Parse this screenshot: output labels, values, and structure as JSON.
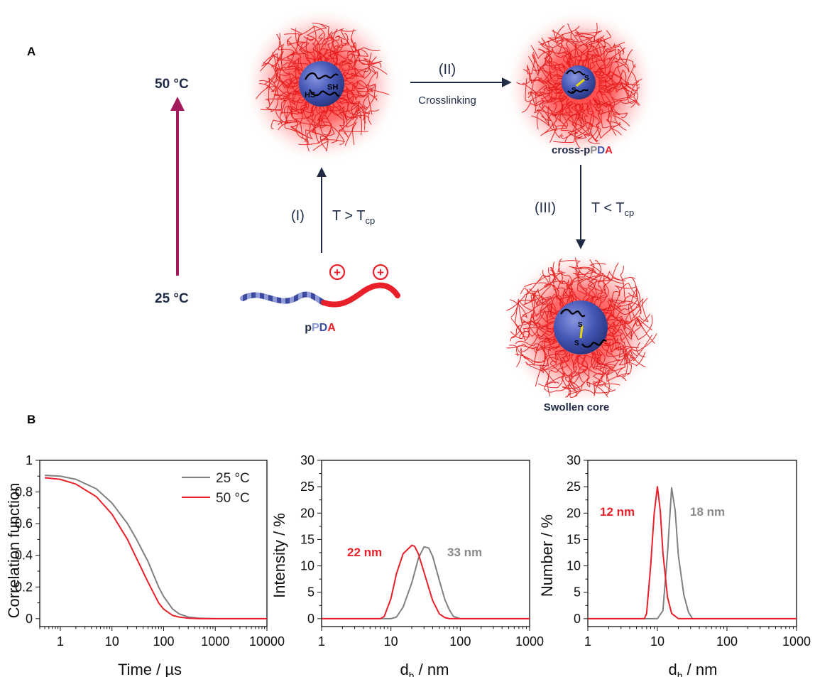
{
  "panel_a": {
    "label": "A",
    "temp_high": "50 °C",
    "temp_low": "25 °C",
    "step1_num": "(I)",
    "step1_cond": "T > T",
    "step1_sub": "cp",
    "step2_num": "(II)",
    "step2_name": "Crosslinking",
    "step3_num": "(III)",
    "step3_cond": "T < T",
    "step3_sub": "cp",
    "sh_left": "HS",
    "sh_right": "SH",
    "s_label": "S",
    "charge": "+",
    "ppda_p": "p",
    "ppda_pd_p": "P",
    "ppda_d": "D",
    "ppda_a": "A",
    "cross_prefix": "cross-p",
    "swollen": "Swollen core",
    "colors": {
      "shell": "#e8202a",
      "core": "#3d4fa8",
      "arrow_dark": "#1f2a44",
      "arrow_temp": "#a3195b",
      "disulfide": "#e8d800"
    }
  },
  "panel_b": {
    "label": "B",
    "legend_25": "25 °C",
    "legend_50": "50 °C",
    "ylabel_1": "Correlation function",
    "xlabel_1": "Time / µs",
    "ylabel_2": "Intensity / %",
    "ylabel_3": "Number / %",
    "xlabel_d": "d",
    "xlabel_d_sub": "h",
    "xlabel_d_unit": " / nm",
    "ann2_red": "22 nm",
    "ann2_gray": "33 nm",
    "ann3_red": "12 nm",
    "ann3_gray": "18 nm",
    "colors": {
      "c25": "#808080",
      "c50": "#e8202a"
    }
  },
  "chart_data": [
    {
      "type": "line",
      "xlabel": "Time / µs",
      "ylabel": "Correlation function",
      "xscale": "log",
      "xlim": [
        0.4,
        10000
      ],
      "ylim": [
        -0.05,
        1.0
      ],
      "xticks": [
        "1",
        "10",
        "100",
        "1000",
        "10000"
      ],
      "yticks": [
        "0",
        "0.2",
        "0.4",
        "0.6",
        "0.8",
        "1"
      ],
      "legend": "top-right",
      "series": [
        {
          "name": "25 °C",
          "color": "#808080",
          "x": [
            0.5,
            1,
            2,
            5,
            10,
            20,
            30,
            50,
            80,
            100,
            150,
            200,
            300,
            500,
            1000,
            10000
          ],
          "y": [
            0.905,
            0.9,
            0.88,
            0.82,
            0.73,
            0.6,
            0.5,
            0.36,
            0.2,
            0.14,
            0.06,
            0.03,
            0.01,
            0.003,
            0.0,
            0.0
          ]
        },
        {
          "name": "50 °C",
          "color": "#e8202a",
          "x": [
            0.5,
            1,
            2,
            5,
            10,
            20,
            30,
            50,
            80,
            100,
            150,
            200,
            300,
            500,
            1000,
            10000
          ],
          "y": [
            0.89,
            0.88,
            0.85,
            0.77,
            0.66,
            0.5,
            0.38,
            0.23,
            0.1,
            0.06,
            0.02,
            0.01,
            0.003,
            0.0,
            0.0,
            0.0
          ]
        }
      ]
    },
    {
      "type": "line",
      "xlabel": "dh / nm",
      "ylabel": "Intensity / %",
      "xscale": "log",
      "xlim": [
        1,
        1000
      ],
      "ylim": [
        -1.5,
        30
      ],
      "xticks": [
        "1",
        "10",
        "100",
        "1000"
      ],
      "yticks": [
        "0",
        "5",
        "10",
        "15",
        "20",
        "25",
        "30"
      ],
      "annotations": [
        "22 nm",
        "33 nm"
      ],
      "series": [
        {
          "name": "25 °C",
          "color": "#808080",
          "x": [
            1,
            10,
            12,
            15,
            20,
            25,
            30,
            35,
            40,
            50,
            60,
            70,
            80,
            100,
            1000
          ],
          "y": [
            0,
            0,
            0.3,
            2.2,
            6.8,
            11.5,
            13.6,
            13.4,
            11.8,
            7.2,
            3.6,
            1.6,
            0.4,
            0,
            0
          ]
        },
        {
          "name": "50 °C",
          "color": "#e8202a",
          "x": [
            1,
            7,
            8,
            10,
            12,
            15,
            20,
            22,
            25,
            30,
            40,
            50,
            60,
            70,
            1000
          ],
          "y": [
            0,
            0,
            0.4,
            3.8,
            8.5,
            12.3,
            13.9,
            13.7,
            12.2,
            8.8,
            3.4,
            0.9,
            0.2,
            0,
            0
          ]
        }
      ]
    },
    {
      "type": "line",
      "xlabel": "dh / nm",
      "ylabel": "Number / %",
      "xscale": "log",
      "xlim": [
        1,
        1000
      ],
      "ylim": [
        -1.5,
        30
      ],
      "xticks": [
        "1",
        "10",
        "100",
        "1000"
      ],
      "yticks": [
        "0",
        "5",
        "10",
        "15",
        "20",
        "25",
        "30"
      ],
      "annotations": [
        "12 nm",
        "18 nm"
      ],
      "series": [
        {
          "name": "25 °C",
          "color": "#808080",
          "x": [
            1,
            10,
            12,
            14,
            16,
            18,
            20,
            24,
            28,
            32,
            1000
          ],
          "y": [
            0,
            0,
            1.5,
            12.5,
            24.8,
            20.5,
            12.0,
            4.5,
            1.2,
            0,
            0
          ]
        },
        {
          "name": "50 °C",
          "color": "#e8202a",
          "x": [
            1,
            6.5,
            7,
            8,
            9,
            10,
            11,
            12,
            14,
            16,
            20,
            1000
          ],
          "y": [
            0,
            0,
            1.0,
            10.0,
            20.0,
            25.0,
            20.5,
            12.5,
            4.0,
            1.0,
            0,
            0
          ]
        }
      ]
    }
  ]
}
